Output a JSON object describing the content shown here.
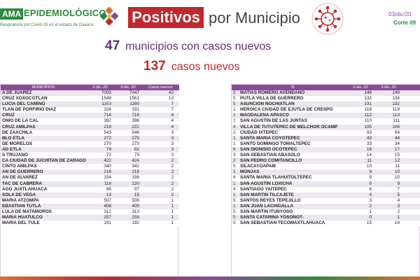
{
  "header": {
    "brand_tag": "AMA",
    "brand_title": "EPIDEMIOLÓGICO",
    "brand_subtitle": "Respiratoria por Covid-19 en el estado de Oaxaca",
    "title_highlight": "Positivos",
    "title_rest": "por Municipio",
    "date": "03/dic/20",
    "corte": "Corte 09"
  },
  "summary": {
    "municipios_num": "47",
    "municipios_txt": "municipios con casos nuevos",
    "casos_num": "137",
    "casos_txt": "casos nuevos"
  },
  "left_table": {
    "headers": [
      "MUNICIPIOS",
      "2-dic.-20",
      "3-dic.-20",
      "Casos nuevos"
    ],
    "rows": [
      {
        "name": "A DE JUAREZ",
        "a": "7005",
        "b": "7047",
        "c": "42"
      },
      {
        "name": "CRUZ XOXOCOTLAN",
        "a": "1548",
        "b": "1561",
        "c": "13"
      },
      {
        "name": "LUCIA DEL CAMINO",
        "a": "1153",
        "b": "1160",
        "c": "7"
      },
      {
        "name": "TLAN DE PORFIRIO DIAZ",
        "a": "324",
        "b": "331",
        "c": "7"
      },
      {
        "name": "CRUZ",
        "a": "714",
        "b": "718",
        "c": "4"
      },
      {
        "name": "ONIO DE LA CAL",
        "a": "392",
        "b": "396",
        "c": "4"
      },
      {
        "name": "CRUZ AMILPAS",
        "a": "218",
        "b": "222",
        "c": "4"
      },
      {
        "name": "DE ZAACHILA",
        "a": "543",
        "b": "546",
        "c": "3"
      },
      {
        "name": "BLO ETLA",
        "a": "272",
        "b": "275",
        "c": "3"
      },
      {
        "name": "DE MORELOS",
        "a": "270",
        "b": "273",
        "c": "3"
      },
      {
        "name": "AD ETLA",
        "a": "79",
        "b": "82",
        "c": "3"
      },
      {
        "name": "S TRUJANO",
        "a": "72",
        "b": "75",
        "c": "3"
      },
      {
        "name": "CA CIUDAD DE JUCHITAN DE ZARAGO",
        "a": "422",
        "b": "424",
        "c": "2"
      },
      {
        "name": "CINTO AMILPAS",
        "a": "340",
        "b": "342",
        "c": "2"
      },
      {
        "name": "AN DE GUERRERO",
        "a": "216",
        "b": "218",
        "c": "2"
      },
      {
        "name": "AN DE ALVAREZ",
        "a": "154",
        "b": "156",
        "c": "2"
      },
      {
        "name": "TAC DE CABRERA",
        "a": "118",
        "b": "120",
        "c": "2"
      },
      {
        "name": "AGO JUXTLAHUACA",
        "a": "95",
        "b": "97",
        "c": "2"
      },
      {
        "name": "SOLA DE VEGA",
        "a": "13",
        "b": "15",
        "c": "2"
      },
      {
        "name": "MARIA ATZOMPA",
        "a": "507",
        "b": "508",
        "c": "1"
      },
      {
        "name": "EBASTIAN TUTLA",
        "a": "408",
        "b": "409",
        "c": "1"
      },
      {
        "name": "LULA DE MATAMOROS",
        "a": "312",
        "b": "313",
        "c": "1"
      },
      {
        "name": "MARIA HUATULCO",
        "a": "257",
        "b": "258",
        "c": "1"
      },
      {
        "name": "MARIA DEL TULE",
        "a": "191",
        "b": "192",
        "c": "1"
      }
    ]
  },
  "right_table": {
    "headers": [
      "",
      "IS",
      "2-dic.-20",
      "3-dic.-20",
      ""
    ],
    "rows": [
      {
        "no": "2",
        "name": "MATIAS ROMERO AVENDAÑO",
        "a": "148",
        "b": "149"
      },
      {
        "no": "5",
        "name": "PUTLA VILLA DE GUERRERO",
        "a": "133",
        "b": "134"
      },
      {
        "no": "5",
        "name": "ASUNCION NOCHIXTLAN",
        "a": "131",
        "b": "132"
      },
      {
        "no": "1",
        "name": "HEROICA CIUDAD DE EJUTLA DE CRESPO",
        "a": "118",
        "b": "119"
      },
      {
        "no": "1",
        "name": "MAGDALENA APASCO",
        "a": "112",
        "b": "113"
      },
      {
        "no": "1",
        "name": "SAN AGUSTIN DE LAS JUNTAS",
        "a": "110",
        "b": "111"
      },
      {
        "no": "4",
        "name": "VILLA DE TUTUTEPEC DE MELCHOR OCAMP",
        "a": "105",
        "b": "106"
      },
      {
        "no": "2",
        "name": "CIUDAD IXTEPEC",
        "a": "93",
        "b": "94"
      },
      {
        "no": "1",
        "name": "SANTA MARIA COYOTEPEC",
        "a": "43",
        "b": "44"
      },
      {
        "no": "1",
        "name": "SANTO DOMINGO TOMALTEPEC",
        "a": "33",
        "b": "34"
      },
      {
        "no": "6",
        "name": "SAN DIONISIO OCOTEPEC",
        "a": "16",
        "b": "17"
      },
      {
        "no": "3",
        "name": "SAN SEBASTIAN ABASOLO",
        "a": "14",
        "b": "15"
      },
      {
        "no": "2",
        "name": "SAN PEDRO COMITANCILLO",
        "a": "11",
        "b": "12"
      },
      {
        "no": "5",
        "name": "SILACAYOAPAM",
        "a": "10",
        "b": "11"
      },
      {
        "no": "1",
        "name": "MONJAS",
        "a": "9",
        "b": "10"
      },
      {
        "no": "6",
        "name": "SANTA MARIA TLAHUITOLTEPEC",
        "a": "9",
        "b": "10"
      },
      {
        "no": "1",
        "name": "SAN AGUSTIN LOXICHA",
        "a": "8",
        "b": "9"
      },
      {
        "no": "4",
        "name": "SANTIAGO YAITEPEC",
        "a": "6",
        "b": "7"
      },
      {
        "no": "1",
        "name": "SAN MARTIN TILCAJETE",
        "a": "4",
        "b": "5"
      },
      {
        "no": "5",
        "name": "SANTOS REYES TEPEJILLO",
        "a": "3",
        "b": "4"
      },
      {
        "no": "1",
        "name": "SAN JUAN LACHIGALLA",
        "a": "2",
        "b": "3"
      },
      {
        "no": "5",
        "name": "SAN MARTIN ITUNYOSO",
        "a": "1",
        "b": "2"
      },
      {
        "no": "5",
        "name": "SANTA CATARINA YOSONOT-",
        "a": "0",
        "b": "1"
      },
      {
        "no": "5",
        "name": "SAN SEBASTIAN TECOMAXTLAHUACA",
        "a": "15",
        "b": "14"
      }
    ]
  },
  "colors": {
    "green": "#2e8b3d",
    "red": "#c1272d",
    "purple": "#8a4a9a",
    "orange": "#e36c2c"
  }
}
